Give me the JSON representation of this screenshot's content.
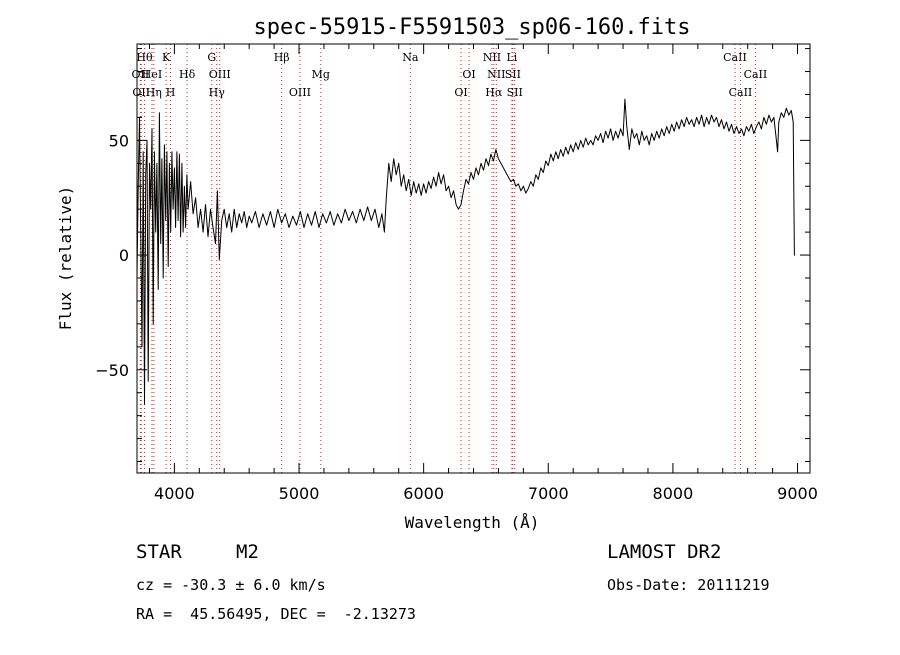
{
  "chart_data": {
    "type": "line",
    "title": "spec-55915-F5591503_sp06-160.fits",
    "xlabel": "Wavelength (Å)",
    "ylabel": "Flux (relative)",
    "xlim": [
      3700,
      9100
    ],
    "ylim": [
      -95,
      92
    ],
    "xticks": [
      4000,
      5000,
      6000,
      7000,
      8000,
      9000
    ],
    "yticks": [
      -50,
      0,
      50
    ],
    "grid": false,
    "series": [
      {
        "values": [
          [
            3700,
            -10
          ],
          [
            3710,
            30
          ],
          [
            3720,
            60
          ],
          [
            3730,
            10
          ],
          [
            3740,
            -40
          ],
          [
            3750,
            45
          ],
          [
            3760,
            -65
          ],
          [
            3770,
            35
          ],
          [
            3780,
            50
          ],
          [
            3790,
            -55
          ],
          [
            3800,
            40
          ],
          [
            3810,
            20
          ],
          [
            3820,
            55
          ],
          [
            3830,
            -30
          ],
          [
            3840,
            45
          ],
          [
            3850,
            10
          ],
          [
            3860,
            40
          ],
          [
            3870,
            -15
          ],
          [
            3880,
            62
          ],
          [
            3890,
            5
          ],
          [
            3900,
            42
          ],
          [
            3910,
            -10
          ],
          [
            3920,
            48
          ],
          [
            3930,
            15
          ],
          [
            3940,
            45
          ],
          [
            3950,
            -5
          ],
          [
            3960,
            40
          ],
          [
            3970,
            10
          ],
          [
            3980,
            45
          ],
          [
            3990,
            20
          ],
          [
            4000,
            38
          ],
          [
            4010,
            12
          ],
          [
            4020,
            45
          ],
          [
            4030,
            15
          ],
          [
            4040,
            44
          ],
          [
            4050,
            8
          ],
          [
            4060,
            40
          ],
          [
            4070,
            10
          ],
          [
            4080,
            30
          ],
          [
            4090,
            12
          ],
          [
            4100,
            35
          ],
          [
            4110,
            20
          ],
          [
            4130,
            32
          ],
          [
            4150,
            18
          ],
          [
            4170,
            25
          ],
          [
            4190,
            12
          ],
          [
            4210,
            20
          ],
          [
            4230,
            10
          ],
          [
            4250,
            22
          ],
          [
            4270,
            8
          ],
          [
            4290,
            20
          ],
          [
            4310,
            12
          ],
          [
            4330,
            5
          ],
          [
            4345,
            28
          ],
          [
            4360,
            -2
          ],
          [
            4380,
            15
          ],
          [
            4400,
            20
          ],
          [
            4420,
            12
          ],
          [
            4440,
            18
          ],
          [
            4460,
            10
          ],
          [
            4480,
            20
          ],
          [
            4500,
            12
          ],
          [
            4520,
            18
          ],
          [
            4540,
            14
          ],
          [
            4560,
            19
          ],
          [
            4580,
            12
          ],
          [
            4600,
            17
          ],
          [
            4620,
            14
          ],
          [
            4650,
            19
          ],
          [
            4680,
            12
          ],
          [
            4710,
            18
          ],
          [
            4740,
            13
          ],
          [
            4770,
            19
          ],
          [
            4800,
            12
          ],
          [
            4830,
            20
          ],
          [
            4860,
            14
          ],
          [
            4890,
            18
          ],
          [
            4920,
            12
          ],
          [
            4950,
            17
          ],
          [
            4980,
            13
          ],
          [
            5010,
            19
          ],
          [
            5040,
            12
          ],
          [
            5070,
            18
          ],
          [
            5100,
            13
          ],
          [
            5130,
            19
          ],
          [
            5160,
            12
          ],
          [
            5190,
            18
          ],
          [
            5220,
            14
          ],
          [
            5250,
            19
          ],
          [
            5280,
            13
          ],
          [
            5310,
            18
          ],
          [
            5340,
            14
          ],
          [
            5370,
            20
          ],
          [
            5400,
            15
          ],
          [
            5430,
            19
          ],
          [
            5460,
            14
          ],
          [
            5490,
            20
          ],
          [
            5520,
            15
          ],
          [
            5550,
            21
          ],
          [
            5580,
            15
          ],
          [
            5610,
            20
          ],
          [
            5640,
            12
          ],
          [
            5665,
            18
          ],
          [
            5685,
            10
          ],
          [
            5700,
            25
          ],
          [
            5720,
            40
          ],
          [
            5740,
            32
          ],
          [
            5760,
            42
          ],
          [
            5780,
            35
          ],
          [
            5800,
            40
          ],
          [
            5820,
            30
          ],
          [
            5840,
            35
          ],
          [
            5860,
            28
          ],
          [
            5880,
            33
          ],
          [
            5900,
            26
          ],
          [
            5920,
            32
          ],
          [
            5940,
            27
          ],
          [
            5960,
            31
          ],
          [
            5980,
            26
          ],
          [
            6000,
            31
          ],
          [
            6020,
            27
          ],
          [
            6040,
            32
          ],
          [
            6060,
            29
          ],
          [
            6080,
            34
          ],
          [
            6100,
            30
          ],
          [
            6120,
            36
          ],
          [
            6140,
            31
          ],
          [
            6160,
            35
          ],
          [
            6180,
            28
          ],
          [
            6200,
            30
          ],
          [
            6220,
            25
          ],
          [
            6240,
            28
          ],
          [
            6260,
            22
          ],
          [
            6280,
            20
          ],
          [
            6300,
            22
          ],
          [
            6320,
            28
          ],
          [
            6340,
            33
          ],
          [
            6360,
            31
          ],
          [
            6380,
            36
          ],
          [
            6400,
            33
          ],
          [
            6420,
            38
          ],
          [
            6440,
            35
          ],
          [
            6460,
            40
          ],
          [
            6480,
            37
          ],
          [
            6500,
            42
          ],
          [
            6520,
            39
          ],
          [
            6540,
            44
          ],
          [
            6560,
            41
          ],
          [
            6580,
            46
          ],
          [
            6600,
            42
          ],
          [
            6620,
            40
          ],
          [
            6640,
            38
          ],
          [
            6660,
            36
          ],
          [
            6680,
            34
          ],
          [
            6700,
            32
          ],
          [
            6720,
            33
          ],
          [
            6740,
            30
          ],
          [
            6760,
            31
          ],
          [
            6780,
            28
          ],
          [
            6800,
            30
          ],
          [
            6820,
            27
          ],
          [
            6840,
            29
          ],
          [
            6860,
            32
          ],
          [
            6880,
            30
          ],
          [
            6900,
            35
          ],
          [
            6920,
            33
          ],
          [
            6940,
            38
          ],
          [
            6960,
            36
          ],
          [
            6980,
            41
          ],
          [
            7000,
            39
          ],
          [
            7020,
            44
          ],
          [
            7040,
            41
          ],
          [
            7060,
            45
          ],
          [
            7080,
            42
          ],
          [
            7100,
            46
          ],
          [
            7120,
            43
          ],
          [
            7140,
            47
          ],
          [
            7160,
            44
          ],
          [
            7180,
            48
          ],
          [
            7200,
            45
          ],
          [
            7220,
            49
          ],
          [
            7240,
            46
          ],
          [
            7260,
            50
          ],
          [
            7280,
            47
          ],
          [
            7300,
            51
          ],
          [
            7320,
            48
          ],
          [
            7340,
            50
          ],
          [
            7360,
            48
          ],
          [
            7380,
            52
          ],
          [
            7400,
            50
          ],
          [
            7420,
            53
          ],
          [
            7440,
            49
          ],
          [
            7460,
            54
          ],
          [
            7480,
            51
          ],
          [
            7500,
            55
          ],
          [
            7520,
            50
          ],
          [
            7540,
            54
          ],
          [
            7560,
            51
          ],
          [
            7580,
            55
          ],
          [
            7600,
            52
          ],
          [
            7615,
            68
          ],
          [
            7630,
            56
          ],
          [
            7650,
            46
          ],
          [
            7670,
            55
          ],
          [
            7690,
            51
          ],
          [
            7710,
            53
          ],
          [
            7730,
            48
          ],
          [
            7750,
            54
          ],
          [
            7770,
            50
          ],
          [
            7790,
            52
          ],
          [
            7810,
            48
          ],
          [
            7830,
            53
          ],
          [
            7850,
            50
          ],
          [
            7870,
            54
          ],
          [
            7890,
            51
          ],
          [
            7910,
            55
          ],
          [
            7930,
            52
          ],
          [
            7950,
            56
          ],
          [
            7970,
            53
          ],
          [
            7990,
            57
          ],
          [
            8010,
            54
          ],
          [
            8030,
            58
          ],
          [
            8050,
            55
          ],
          [
            8070,
            59
          ],
          [
            8090,
            56
          ],
          [
            8110,
            60
          ],
          [
            8130,
            57
          ],
          [
            8150,
            59
          ],
          [
            8170,
            56
          ],
          [
            8190,
            60
          ],
          [
            8210,
            57
          ],
          [
            8230,
            61
          ],
          [
            8250,
            56
          ],
          [
            8270,
            60
          ],
          [
            8290,
            57
          ],
          [
            8310,
            61
          ],
          [
            8330,
            58
          ],
          [
            8350,
            60
          ],
          [
            8370,
            56
          ],
          [
            8390,
            59
          ],
          [
            8410,
            55
          ],
          [
            8430,
            58
          ],
          [
            8450,
            54
          ],
          [
            8470,
            57
          ],
          [
            8490,
            53
          ],
          [
            8510,
            56
          ],
          [
            8530,
            53
          ],
          [
            8550,
            55
          ],
          [
            8570,
            52
          ],
          [
            8590,
            56
          ],
          [
            8610,
            54
          ],
          [
            8630,
            57
          ],
          [
            8650,
            53
          ],
          [
            8670,
            56
          ],
          [
            8690,
            58
          ],
          [
            8710,
            55
          ],
          [
            8730,
            60
          ],
          [
            8750,
            57
          ],
          [
            8770,
            61
          ],
          [
            8790,
            58
          ],
          [
            8810,
            60
          ],
          [
            8830,
            50
          ],
          [
            8840,
            45
          ],
          [
            8850,
            58
          ],
          [
            8870,
            62
          ],
          [
            8890,
            60
          ],
          [
            8910,
            64
          ],
          [
            8930,
            61
          ],
          [
            8950,
            63
          ],
          [
            8965,
            58
          ],
          [
            8975,
            0
          ],
          [
            8980,
            0
          ]
        ]
      }
    ],
    "lines": [
      {
        "wave": 3727,
        "label": "OII",
        "row": 2
      },
      {
        "wave": 3734,
        "label": "OII",
        "row": 3
      },
      {
        "wave": 3760,
        "label": "Hθ",
        "row": 1
      },
      {
        "wave": 3820,
        "label": "HeI",
        "row": 2
      },
      {
        "wave": 3835,
        "label": "Hη",
        "row": 3
      },
      {
        "wave": 3934,
        "label": "K",
        "row": 1
      },
      {
        "wave": 3969,
        "label": "H",
        "row": 3
      },
      {
        "wave": 4102,
        "label": "Hδ",
        "row": 2
      },
      {
        "wave": 4300,
        "label": "G",
        "row": 1
      },
      {
        "wave": 4340,
        "label": "Hγ",
        "row": 3
      },
      {
        "wave": 4364,
        "label": "OIII",
        "row": 2
      },
      {
        "wave": 4861,
        "label": "Hβ",
        "row": 1
      },
      {
        "wave": 5007,
        "label": "OIII",
        "row": 3
      },
      {
        "wave": 5175,
        "label": "Mg",
        "row": 2
      },
      {
        "wave": 5893,
        "label": "Na",
        "row": 1
      },
      {
        "wave": 6300,
        "label": "OI",
        "row": 3
      },
      {
        "wave": 6364,
        "label": "OI",
        "row": 2
      },
      {
        "wave": 6548,
        "label": "NII",
        "row": 1
      },
      {
        "wave": 6563,
        "label": "Hα",
        "row": 3
      },
      {
        "wave": 6583,
        "label": "NII",
        "row": 2
      },
      {
        "wave": 6708,
        "label": "Li",
        "row": 1
      },
      {
        "wave": 6716,
        "label": "SII",
        "row": 2
      },
      {
        "wave": 6731,
        "label": "SII",
        "row": 3
      },
      {
        "wave": 8498,
        "label": "CaII",
        "row": 1
      },
      {
        "wave": 8542,
        "label": "CaII",
        "row": 3
      },
      {
        "wave": 8662,
        "label": "CaII",
        "row": 2
      }
    ]
  },
  "info": {
    "object_class": "STAR",
    "subclass": "M2",
    "survey": "LAMOST DR2",
    "cz": "cz = -30.3 ± 6.0 km/s",
    "obs_date": "Obs-Date: 20111219",
    "coords": "RA =  45.56495, DEC =  -2.13273"
  }
}
